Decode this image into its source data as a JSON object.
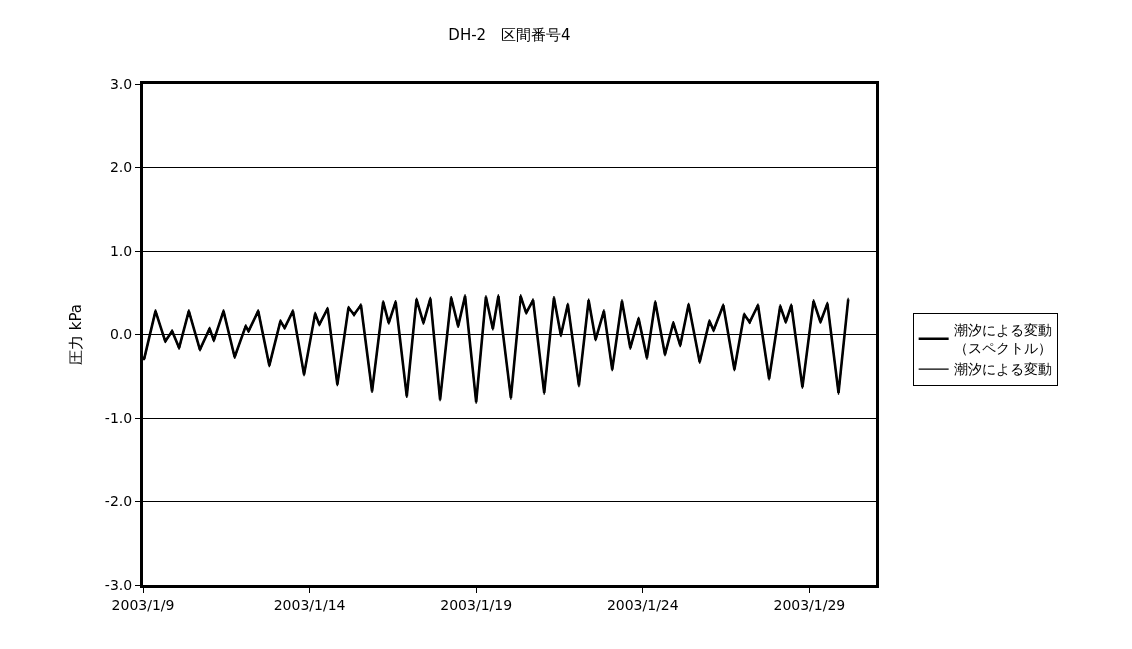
{
  "chart_data": {
    "type": "line",
    "title": "DH-2　区間番号4",
    "ylabel": "圧力 kPa",
    "xlim": [
      "2003-01-09",
      "2003-01-31"
    ],
    "xticks": [
      {
        "value": "2003-01-09",
        "label": "2003/1/9"
      },
      {
        "value": "2003-01-14",
        "label": "2003/1/14"
      },
      {
        "value": "2003-01-19",
        "label": "2003/1/19"
      },
      {
        "value": "2003-01-24",
        "label": "2003/1/24"
      },
      {
        "value": "2003-01-29",
        "label": "2003/1/29"
      }
    ],
    "ylim": [
      -3,
      3
    ],
    "yticks": [
      {
        "value": -3,
        "label": "-3.0"
      },
      {
        "value": -2,
        "label": "-2.0"
      },
      {
        "value": -1,
        "label": "-1.0"
      },
      {
        "value": 0,
        "label": "0.0"
      },
      {
        "value": 1,
        "label": "1.0"
      },
      {
        "value": 2,
        "label": "2.0"
      },
      {
        "value": 3,
        "label": "3.0"
      }
    ],
    "grid": "y",
    "legend": "right",
    "marker": "none",
    "x": [
      "2003-01-09T00:00",
      "2003-01-09T01:00",
      "2003-01-09T09:00",
      "2003-01-09T16:00",
      "2003-01-09T21:00",
      "2003-01-10T02:00",
      "2003-01-10T09:00",
      "2003-01-10T17:00",
      "2003-01-11T00:00",
      "2003-01-11T03:00",
      "2003-01-11T10:00",
      "2003-01-11T18:00",
      "2003-01-12T02:00",
      "2003-01-12T04:00",
      "2003-01-12T11:00",
      "2003-01-12T19:00",
      "2003-01-13T03:00",
      "2003-01-13T06:00",
      "2003-01-13T12:00",
      "2003-01-13T20:00",
      "2003-01-14T04:00",
      "2003-01-14T07:00",
      "2003-01-14T13:00",
      "2003-01-14T20:00",
      "2003-01-15T04:00",
      "2003-01-15T08:00",
      "2003-01-15T13:00",
      "2003-01-15T21:00",
      "2003-01-16T05:00",
      "2003-01-16T09:00",
      "2003-01-16T14:00",
      "2003-01-16T22:00",
      "2003-01-17T05:00",
      "2003-01-17T10:00",
      "2003-01-17T15:00",
      "2003-01-17T22:00",
      "2003-01-18T06:00",
      "2003-01-18T11:00",
      "2003-01-18T16:00",
      "2003-01-19T00:00",
      "2003-01-19T07:00",
      "2003-01-19T12:00",
      "2003-01-19T16:00",
      "2003-01-20T01:00",
      "2003-01-20T08:00",
      "2003-01-20T12:00",
      "2003-01-20T17:00",
      "2003-01-21T01:00",
      "2003-01-21T08:00",
      "2003-01-21T13:00",
      "2003-01-21T18:00",
      "2003-01-22T02:00",
      "2003-01-22T09:00",
      "2003-01-22T14:00",
      "2003-01-22T20:00",
      "2003-01-23T02:00",
      "2003-01-23T09:00",
      "2003-01-23T15:00",
      "2003-01-23T21:00",
      "2003-01-24T03:00",
      "2003-01-24T09:00",
      "2003-01-24T16:00",
      "2003-01-24T22:00",
      "2003-01-25T03:00",
      "2003-01-25T09:00",
      "2003-01-25T17:00",
      "2003-01-26T00:00",
      "2003-01-26T03:00",
      "2003-01-26T10:00",
      "2003-01-26T18:00",
      "2003-01-27T01:00",
      "2003-01-27T05:00",
      "2003-01-27T11:00",
      "2003-01-27T19:00",
      "2003-01-28T03:00",
      "2003-01-28T07:00",
      "2003-01-28T11:00",
      "2003-01-28T19:00",
      "2003-01-29T03:00",
      "2003-01-29T08:00",
      "2003-01-29T13:00",
      "2003-01-29T21:00",
      "2003-01-30T04:00"
    ],
    "series": [
      {
        "name": "潮汐による変動（スペクトル）",
        "color": "#000000",
        "values": [
          -0.28,
          -0.28,
          0.28,
          -0.08,
          0.04,
          -0.16,
          0.28,
          -0.18,
          0.07,
          -0.07,
          0.28,
          -0.27,
          0.1,
          0.04,
          0.28,
          -0.37,
          0.16,
          0.08,
          0.28,
          -0.48,
          0.25,
          0.12,
          0.31,
          -0.6,
          0.32,
          0.24,
          0.35,
          -0.68,
          0.39,
          0.14,
          0.39,
          -0.74,
          0.42,
          0.14,
          0.43,
          -0.78,
          0.44,
          0.1,
          0.46,
          -0.81,
          0.45,
          0.07,
          0.46,
          -0.76,
          0.46,
          0.26,
          0.41,
          -0.7,
          0.44,
          -0.01,
          0.36,
          -0.61,
          0.41,
          -0.06,
          0.28,
          -0.42,
          0.4,
          -0.16,
          0.19,
          -0.28,
          0.39,
          -0.24,
          0.14,
          -0.13,
          0.36,
          -0.33,
          0.16,
          0.05,
          0.35,
          -0.42,
          0.24,
          0.15,
          0.35,
          -0.53,
          0.34,
          0.15,
          0.35,
          -0.63,
          0.4,
          0.15,
          0.37,
          -0.7,
          0.42
        ]
      },
      {
        "name": "潮汐による変動",
        "color": "#000000",
        "values": [
          -0.3,
          -0.3,
          0.3,
          -0.1,
          0.06,
          -0.18,
          0.3,
          -0.2,
          0.09,
          -0.09,
          0.3,
          -0.29,
          0.12,
          0.02,
          0.3,
          -0.39,
          0.18,
          0.06,
          0.3,
          -0.5,
          0.27,
          0.1,
          0.33,
          -0.62,
          0.34,
          0.22,
          0.37,
          -0.7,
          0.41,
          0.12,
          0.41,
          -0.76,
          0.44,
          0.12,
          0.45,
          -0.8,
          0.46,
          0.08,
          0.48,
          -0.83,
          0.47,
          0.05,
          0.48,
          -0.78,
          0.48,
          0.24,
          0.43,
          -0.72,
          0.46,
          -0.03,
          0.38,
          -0.63,
          0.43,
          -0.08,
          0.3,
          -0.44,
          0.42,
          -0.18,
          0.21,
          -0.3,
          0.41,
          -0.26,
          0.16,
          -0.15,
          0.38,
          -0.35,
          0.18,
          0.03,
          0.37,
          -0.44,
          0.26,
          0.13,
          0.37,
          -0.55,
          0.36,
          0.13,
          0.37,
          -0.65,
          0.42,
          0.13,
          0.39,
          -0.72,
          0.44
        ]
      }
    ]
  }
}
